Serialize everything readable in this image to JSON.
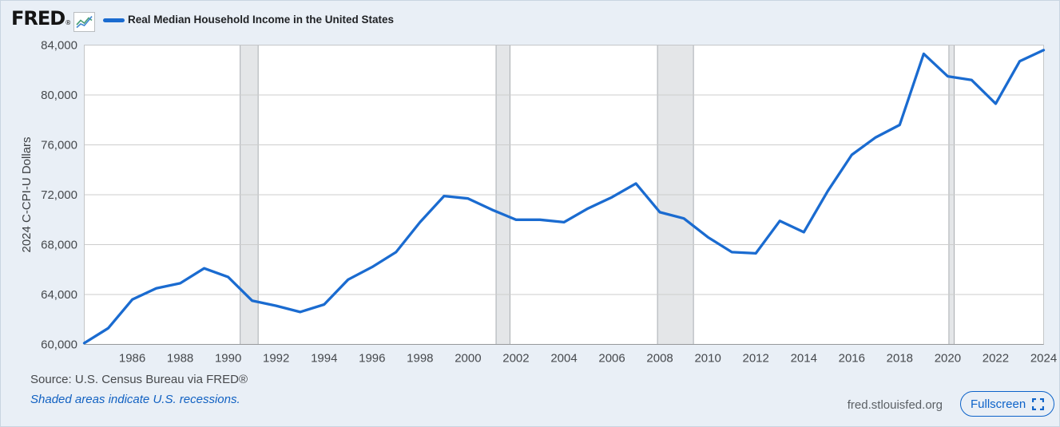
{
  "header": {
    "logo_text": "FRED",
    "logo_registered": "®",
    "legend_label": "Real Median Household Income in the United States"
  },
  "footer": {
    "source": "Source: U.S. Census Bureau via FRED®",
    "recession_note": "Shaded areas indicate U.S. recessions.",
    "site_url": "fred.stlouisfed.org",
    "fullscreen_label": "Fullscreen"
  },
  "colors": {
    "series_line": "#1a6bd0",
    "page_bg": "#e9eff6",
    "plot_bg": "#ffffff",
    "gridline": "#cdcdcd",
    "plot_border": "#c4c6c8",
    "bottom_axis": "#97999b",
    "recession_band_fill": "#e4e6e8",
    "recession_band_edge": "#a9adb1",
    "axis_text": "#46494d",
    "ylabel_text": "#3d4043",
    "link_blue": "#1161c2",
    "fullscreen_blue": "#0d63c9",
    "icon_line_green": "#4aa07a",
    "icon_line_blue": "#4289d2"
  },
  "chart_data": {
    "type": "line",
    "title": "Real Median Household Income in the United States",
    "xlabel": "",
    "ylabel": "2024 C-CPI-U Dollars",
    "grid": true,
    "legend_position": "top-left",
    "xlim": [
      1984,
      2024
    ],
    "ylim": [
      60000,
      84000
    ],
    "y_ticks": [
      60000,
      64000,
      68000,
      72000,
      76000,
      80000,
      84000
    ],
    "x_ticks": [
      1986,
      1988,
      1990,
      1992,
      1994,
      1996,
      1998,
      2000,
      2002,
      2004,
      2006,
      2008,
      2010,
      2012,
      2014,
      2016,
      2018,
      2020,
      2022,
      2024
    ],
    "x": [
      1984,
      1985,
      1986,
      1987,
      1988,
      1989,
      1990,
      1991,
      1992,
      1993,
      1994,
      1995,
      1996,
      1997,
      1998,
      1999,
      2000,
      2001,
      2002,
      2003,
      2004,
      2005,
      2006,
      2007,
      2008,
      2009,
      2010,
      2011,
      2012,
      2013,
      2014,
      2015,
      2016,
      2017,
      2018,
      2019,
      2020,
      2021,
      2022,
      2023,
      2024
    ],
    "values": [
      60100,
      61300,
      63600,
      64500,
      64900,
      66100,
      65400,
      63500,
      63100,
      62600,
      63200,
      65200,
      66200,
      67400,
      69800,
      71900,
      71700,
      70800,
      70000,
      70000,
      69800,
      70900,
      71800,
      72900,
      70600,
      70100,
      68600,
      67400,
      67300,
      69900,
      69000,
      72300,
      75200,
      76600,
      77600,
      83300,
      81500,
      81200,
      79300,
      82700,
      83600
    ],
    "recession_bands": [
      [
        1990.5,
        1991.25
      ],
      [
        2001.17,
        2001.75
      ],
      [
        2007.9,
        2009.4
      ],
      [
        2020.05,
        2020.27
      ]
    ]
  }
}
